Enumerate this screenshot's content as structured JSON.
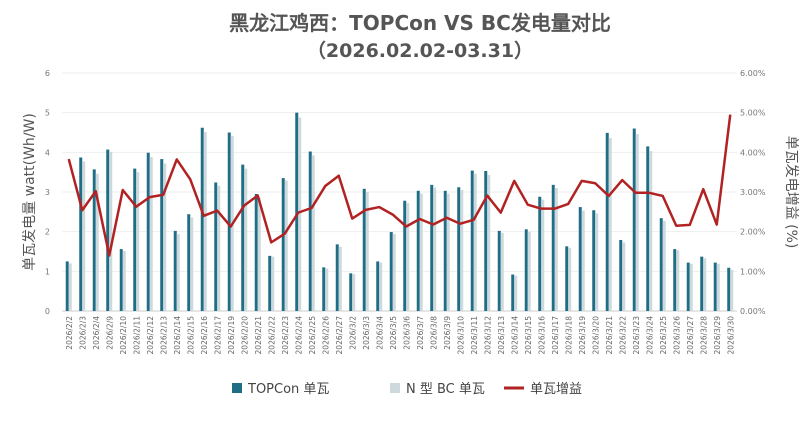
{
  "chart_data": {
    "type": "bar+line",
    "title": "黑龙江鸡西：TOPCon VS BC发电量对比",
    "subtitle": "（2026.02.02-03.31）",
    "ylabel": "单瓦发电量 watt(Wh/W)",
    "y2label": "单瓦发电增益 (%)",
    "ylim": [
      0,
      6
    ],
    "y2lim": [
      0,
      6
    ],
    "yticks": [
      "0",
      "1",
      "2",
      "3",
      "4",
      "5",
      "6"
    ],
    "y2ticks": [
      "0.00%",
      "1.00%",
      "2.00%",
      "3.00%",
      "4.00%",
      "5.00%",
      "6.00%"
    ],
    "grid": true,
    "legend_position": "bottom",
    "colors": {
      "topcon": "#1f6e86",
      "bc": "#cdd9dd",
      "gain": "#b22222"
    },
    "categories": [
      "2026/2/2",
      "2026/2/3",
      "2026/2/4",
      "2026/2/9",
      "2026/2/10",
      "2026/2/11",
      "2026/2/12",
      "2026/2/13",
      "2026/2/14",
      "2026/2/15",
      "2026/2/16",
      "2026/2/17",
      "2026/2/19",
      "2026/2/20",
      "2026/2/21",
      "2026/2/22",
      "2026/2/23",
      "2026/2/24",
      "2026/2/25",
      "2026/2/26",
      "2026/2/27",
      "2026/3/2",
      "2026/3/3",
      "2026/3/4",
      "2026/3/5",
      "2026/3/6",
      "2026/3/7",
      "2026/3/8",
      "2026/3/9",
      "2026/3/10",
      "2026/3/11",
      "2026/3/12",
      "2026/3/13",
      "2026/3/14",
      "2026/3/15",
      "2026/3/16",
      "2026/3/17",
      "2026/3/18",
      "2026/3/19",
      "2026/3/20",
      "2026/3/21",
      "2026/3/22",
      "2026/3/23",
      "2026/3/24",
      "2026/3/25",
      "2026/3/26",
      "2026/3/27",
      "2026/3/28",
      "2026/3/29",
      "2026/3/30"
    ],
    "series": [
      {
        "name": "TOPCon 单瓦",
        "type": "bar",
        "axis": "left",
        "values": [
          1.25,
          3.87,
          3.57,
          4.07,
          1.56,
          3.59,
          3.99,
          3.83,
          2.02,
          2.44,
          4.62,
          3.24,
          4.5,
          3.69,
          2.95,
          1.39,
          3.35,
          5.0,
          4.02,
          1.1,
          1.68,
          0.95,
          3.08,
          1.25,
          1.99,
          2.78,
          3.03,
          3.18,
          3.03,
          3.12,
          3.54,
          3.53,
          2.02,
          0.92,
          2.06,
          2.88,
          3.18,
          1.63,
          2.62,
          2.54,
          4.49,
          1.79,
          4.6,
          4.15,
          2.34,
          1.56,
          1.22,
          1.37,
          1.22,
          1.09
        ]
      },
      {
        "name": "N 型 BC 单瓦",
        "type": "bar",
        "axis": "left",
        "values": [
          1.2,
          3.77,
          3.46,
          4.01,
          1.51,
          3.5,
          3.88,
          3.72,
          1.94,
          2.36,
          4.51,
          3.16,
          4.41,
          3.59,
          2.86,
          1.37,
          3.29,
          4.88,
          3.92,
          1.07,
          1.62,
          0.93,
          3.0,
          1.22,
          1.94,
          2.72,
          2.96,
          3.11,
          2.96,
          3.05,
          3.46,
          3.43,
          1.97,
          0.89,
          2.0,
          2.81,
          3.1,
          1.59,
          2.53,
          2.46,
          4.36,
          1.73,
          4.46,
          4.03,
          2.27,
          1.53,
          1.19,
          1.33,
          1.19,
          1.04
        ]
      },
      {
        "name": "单瓦增益",
        "type": "line",
        "axis": "right",
        "values": [
          3.83,
          2.54,
          3.02,
          1.4,
          3.05,
          2.63,
          2.87,
          2.93,
          3.82,
          3.32,
          2.4,
          2.53,
          2.13,
          2.66,
          2.91,
          1.73,
          1.95,
          2.48,
          2.6,
          3.15,
          3.41,
          2.33,
          2.55,
          2.62,
          2.43,
          2.13,
          2.32,
          2.18,
          2.35,
          2.2,
          2.3,
          2.91,
          2.48,
          3.28,
          2.68,
          2.58,
          2.58,
          2.7,
          3.28,
          3.22,
          2.9,
          3.3,
          2.98,
          2.98,
          2.9,
          2.15,
          2.17,
          3.07,
          2.18,
          4.95
        ]
      }
    ]
  }
}
